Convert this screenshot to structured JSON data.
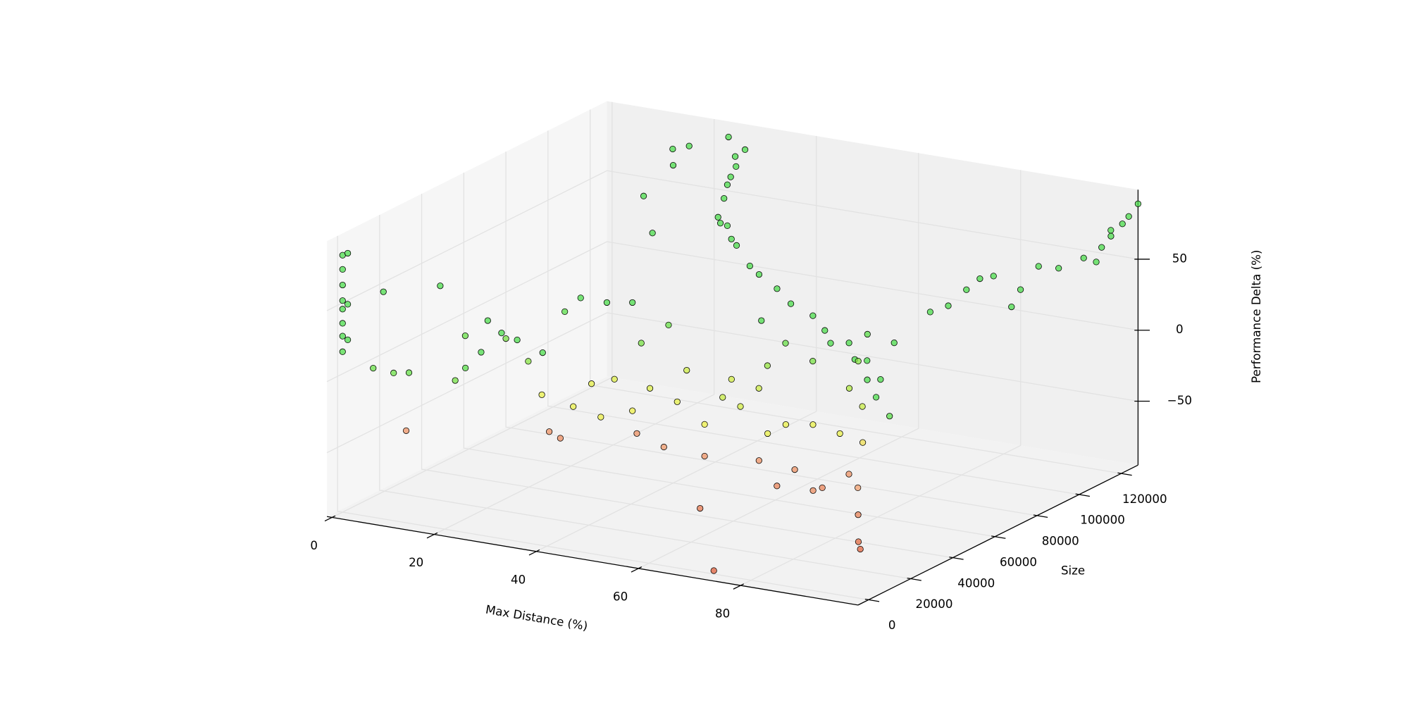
{
  "chart_data": {
    "type": "scatter3d",
    "xlabel": "Max Distance (%)",
    "ylabel": "Size",
    "zlabel": "Performance Delta (%)",
    "xlim": [
      -1,
      103
    ],
    "ylim": [
      -5000,
      128000
    ],
    "zlim": [
      -95,
      99
    ],
    "xticks": [
      0,
      20,
      40,
      60,
      80
    ],
    "yticks": [
      0,
      20000,
      40000,
      60000,
      80000,
      100000,
      120000
    ],
    "zticks": [
      {
        "value": -50,
        "label": "−50"
      },
      0,
      50
    ],
    "grid": true,
    "colormap": [
      {
        "value": -80,
        "color": "#e0603c"
      },
      {
        "value": -55,
        "color": "#f0a070"
      },
      {
        "value": -42,
        "color": "#eef04a"
      },
      {
        "value": -10,
        "color": "#a6e840"
      },
      {
        "value": 20,
        "color": "#4cdc4c"
      }
    ],
    "x": [
      94.5,
      86.8,
      75.6,
      62.4,
      50.9,
      41.1,
      32.3,
      30,
      28.4,
      27.7,
      45,
      37,
      68,
      56,
      29,
      27,
      31,
      34,
      80,
      90,
      12.7,
      15.5,
      16.3,
      22.8,
      16,
      24,
      66.3,
      72.9,
      62.3,
      62.3,
      54.5,
      51.3,
      71.4,
      71,
      70.7,
      74.5,
      76.8,
      85.2,
      89,
      92.8,
      94,
      68.5,
      60.6,
      51.3,
      75.8,
      43.5,
      34.7,
      24,
      21.3,
      0,
      61.8,
      73.8,
      68.6,
      76.5,
      77.8,
      17.7,
      25.8,
      32.1,
      33.8,
      40.5,
      49.5,
      45.2,
      36.8,
      25.9,
      22.6,
      34.9,
      52.7,
      13,
      10,
      14.7,
      22.6,
      19.6,
      22.1,
      25.2,
      29.8,
      35.9,
      36.7,
      0,
      1,
      0,
      0,
      0,
      1,
      0,
      0,
      0,
      1,
      0,
      8,
      6,
      10,
      13,
      15,
      20,
      22,
      23,
      27,
      28,
      33,
      98,
      98,
      98,
      98,
      98,
      98,
      98,
      98,
      98,
      98,
      98,
      98,
      98,
      103,
      102,
      101,
      101,
      98,
      98,
      99,
      102,
      100,
      59.2,
      56.9,
      66.4,
      70,
      55.3
    ],
    "y": [
      20000,
      30000,
      40000,
      55000,
      70000,
      85000,
      100000,
      110000,
      118000,
      124000,
      78000,
      93000,
      48000,
      62000,
      114000,
      121000,
      106000,
      97000,
      35000,
      25000,
      126000,
      127000,
      117500,
      128000,
      104200,
      89000,
      62600,
      59400,
      59400,
      50800,
      56800,
      56100,
      67500,
      72700,
      77800,
      66200,
      60800,
      38100,
      29000,
      19900,
      17900,
      48600,
      50800,
      47500,
      44000,
      47100,
      55600,
      45200,
      46500,
      30200,
      19900,
      -2700,
      39900,
      37900,
      51800,
      51700,
      47000,
      44800,
      64000,
      60700,
      51900,
      75100,
      74200,
      66300,
      63400,
      53000,
      69900,
      37400,
      34000,
      41900,
      33400,
      58000,
      59500,
      64400,
      65400,
      54800,
      65800,
      0,
      0,
      0,
      0,
      0,
      0,
      0,
      0,
      0,
      0,
      0,
      0,
      0,
      0,
      0,
      10000,
      5000,
      5000,
      10000,
      10000,
      15000,
      15000,
      11400,
      15700,
      22100,
      17800,
      24300,
      41400,
      58600,
      71500,
      84300,
      92900,
      80000,
      114300,
      127200,
      128000,
      126000,
      120000,
      113000,
      50000,
      65000,
      100000,
      123000,
      118000,
      66800,
      63800,
      62300,
      62000,
      64800
    ],
    "z": [
      40,
      54,
      59,
      59,
      57,
      59,
      58,
      72,
      78,
      85,
      62,
      60,
      57,
      60,
      74,
      82,
      66,
      57,
      55,
      48,
      75,
      78,
      72,
      88,
      60,
      50,
      -40,
      -40,
      -40,
      -40,
      -30,
      -25,
      -15,
      0,
      15,
      -25,
      -45,
      -55,
      -65,
      -75,
      -78,
      -60,
      -60,
      -60,
      -65,
      -58,
      -60,
      -62,
      -60,
      -60,
      -70,
      -90,
      -65,
      -62,
      -60,
      -40,
      -40,
      -42,
      -35,
      -38,
      -42,
      -30,
      -28,
      -35,
      -38,
      -42,
      -28,
      20,
      10,
      5,
      0,
      15,
      25,
      20,
      22,
      5,
      10,
      86,
      88,
      76,
      65,
      54,
      52,
      48,
      38,
      29,
      27,
      18,
      65,
      10,
      9,
      11,
      66,
      6,
      16,
      24,
      40,
      32,
      26,
      62,
      33,
      15,
      44,
      65,
      74,
      77,
      77,
      58,
      68,
      49,
      58,
      68,
      89,
      81,
      71,
      58,
      72,
      80,
      62,
      78,
      64,
      10,
      -5,
      5,
      20,
      25
    ]
  }
}
